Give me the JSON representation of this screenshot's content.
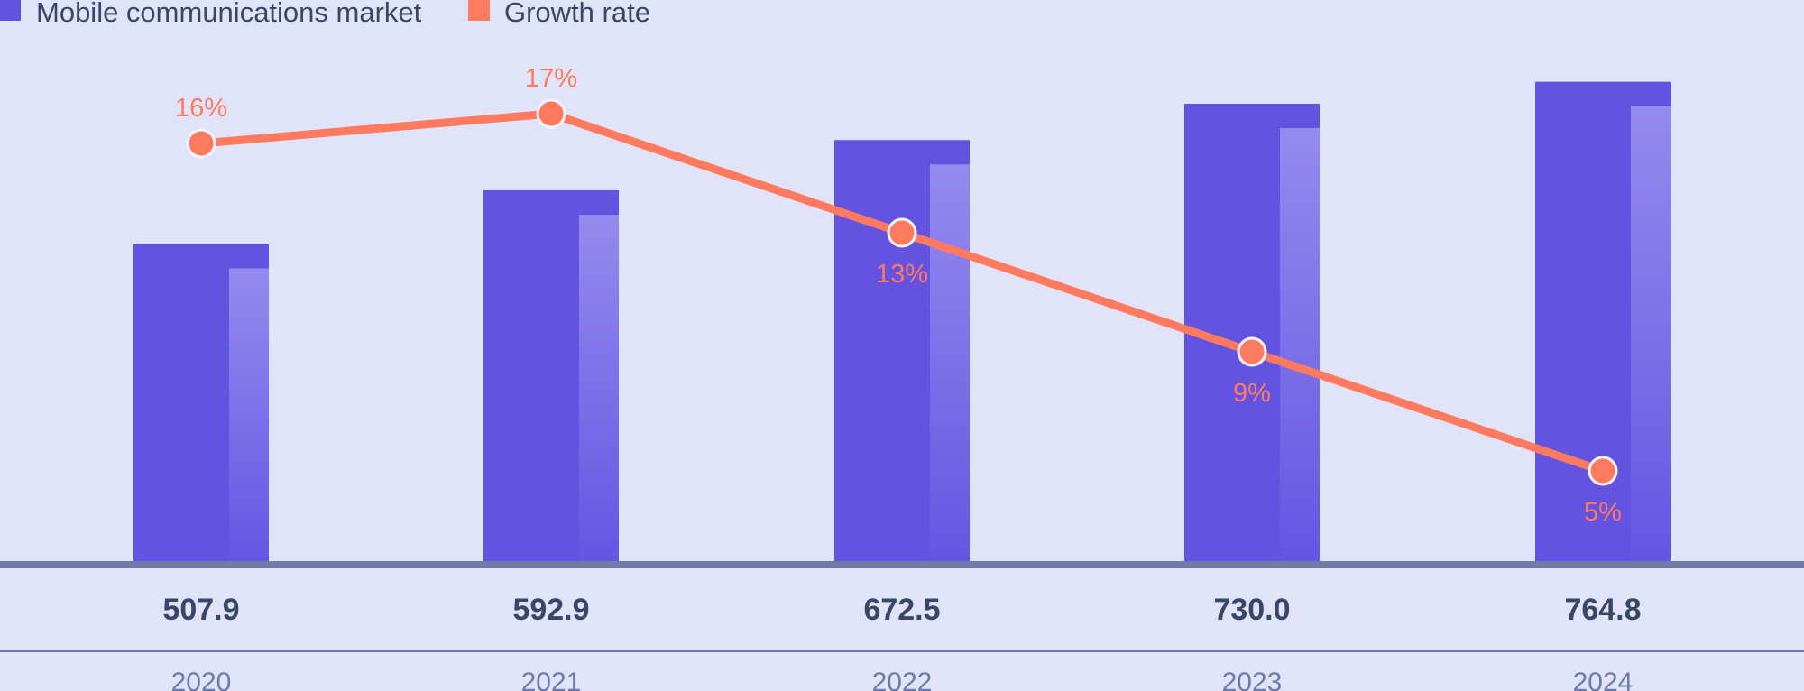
{
  "chart_data": {
    "type": "bar",
    "title": "",
    "xlabel": "",
    "ylabel": "",
    "categories": [
      "2020",
      "2021",
      "2022",
      "2023",
      "2024"
    ],
    "series": [
      {
        "name": "Mobile communications market",
        "type": "bar",
        "values": [
          507.9,
          592.9,
          672.5,
          730.0,
          764.8
        ],
        "labels": [
          "507.9",
          "592.9",
          "672.5",
          "730.0",
          "764.8"
        ],
        "color": "#6453e0"
      },
      {
        "name": "Growth rate",
        "type": "line",
        "values": [
          16,
          17,
          13,
          9,
          5
        ],
        "labels": [
          "16%",
          "17%",
          "13%",
          "9%",
          "5%"
        ],
        "color": "#ff7a5e"
      }
    ],
    "legend": {
      "position": "top-left",
      "entries": [
        "Mobile communications market",
        "Growth rate"
      ]
    },
    "grid": false
  }
}
